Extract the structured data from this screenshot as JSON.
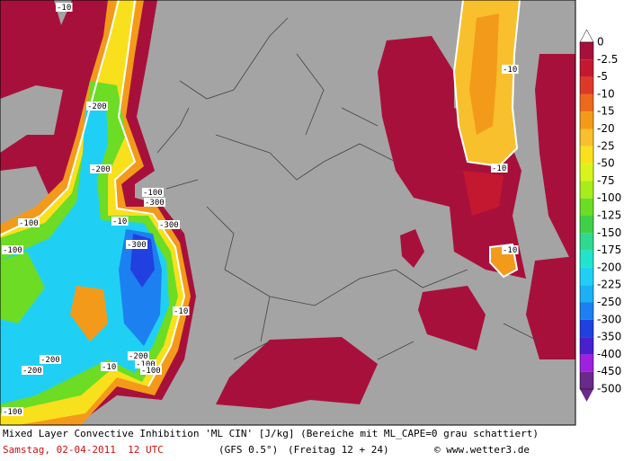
{
  "title": "Mixed Layer Convective Inhibition 'ML CIN' [J/kg] (Bereiche mit ML_CAPE=0 grau schattiert)",
  "footer": {
    "date": "Samstag, 02-04-2011  12 UTC",
    "model": "(GFS 0.5°)",
    "run": "(Freitag 12 + 24)",
    "credit": "© www.wetter3.de"
  },
  "legend": {
    "labels": [
      "0",
      "-2.5",
      "-5",
      "-10",
      "-15",
      "-20",
      "-25",
      "-50",
      "-75",
      "-100",
      "-125",
      "-150",
      "-175",
      "-200",
      "-225",
      "-250",
      "-300",
      "-350",
      "-400",
      "-450",
      "-500"
    ],
    "colors": [
      "#ffffff",
      "#a8103c",
      "#c41830",
      "#dc3a26",
      "#ec6a1c",
      "#f49a1a",
      "#f8c02c",
      "#f8e01c",
      "#d8f41c",
      "#a8ec1c",
      "#6cdc24",
      "#40d048",
      "#30d890",
      "#20e4cc",
      "#20d0f4",
      "#1cb0f4",
      "#1c80f0",
      "#2040e0",
      "#4820d0",
      "#a020e0",
      "#6a2a8a"
    ]
  },
  "contour_labels": [
    "-10",
    "-200",
    "-200",
    "-10",
    "-100",
    "-100",
    "-300",
    "-300",
    "-300",
    "-10",
    "-200",
    "-100",
    "-100",
    "-10",
    "-200",
    "-200",
    "-100",
    "-100",
    "-10",
    "-10",
    "-10"
  ]
}
